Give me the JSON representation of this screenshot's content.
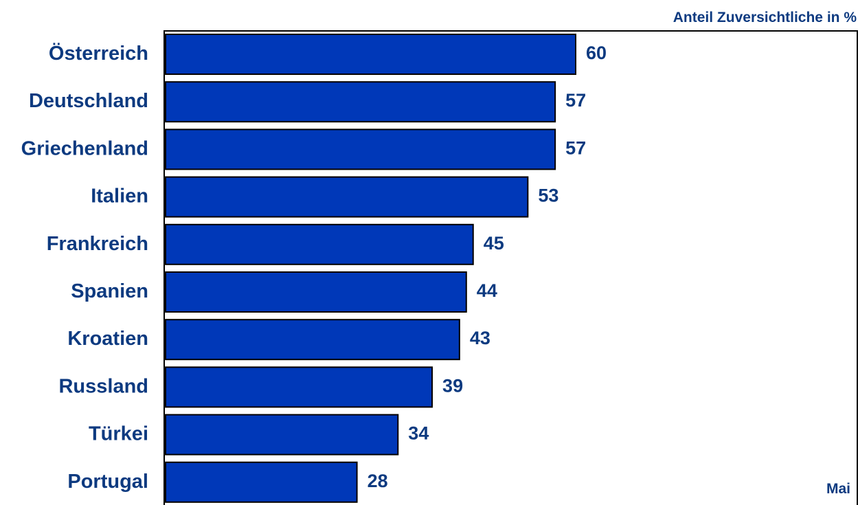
{
  "chart_data": {
    "type": "bar",
    "orientation": "horizontal",
    "title": "Anteil Zuversichtliche in %",
    "note": "Mai",
    "categories": [
      "Österreich",
      "Deutschland",
      "Griechenland",
      "Italien",
      "Frankreich",
      "Spanien",
      "Kroatien",
      "Russland",
      "Türkei",
      "Portugal"
    ],
    "values": [
      60,
      57,
      57,
      53,
      45,
      44,
      43,
      39,
      34,
      28
    ],
    "xlim": [
      0,
      100
    ],
    "grid": false,
    "colors": {
      "bar": "#0038b8",
      "bar_border": "#000000",
      "text": "#0d3a80",
      "frame": "#000000"
    }
  }
}
